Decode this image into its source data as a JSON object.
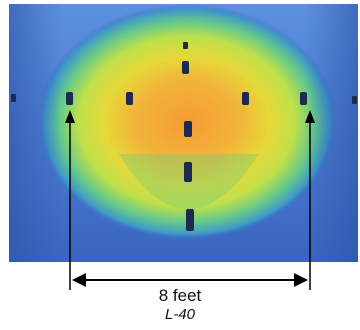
{
  "figure": {
    "dimension_label": "8 feet",
    "figure_id": "L-40"
  },
  "colors": {
    "background_blue": "#3a6fc4",
    "frame_blue": "#6e9ae0",
    "heat_yellow": "#e3e23a",
    "heat_orange": "#f3a93c",
    "heat_green": "#8fd16b",
    "fixture_dark": "#1a2a4a",
    "arrow_black": "#000000"
  }
}
